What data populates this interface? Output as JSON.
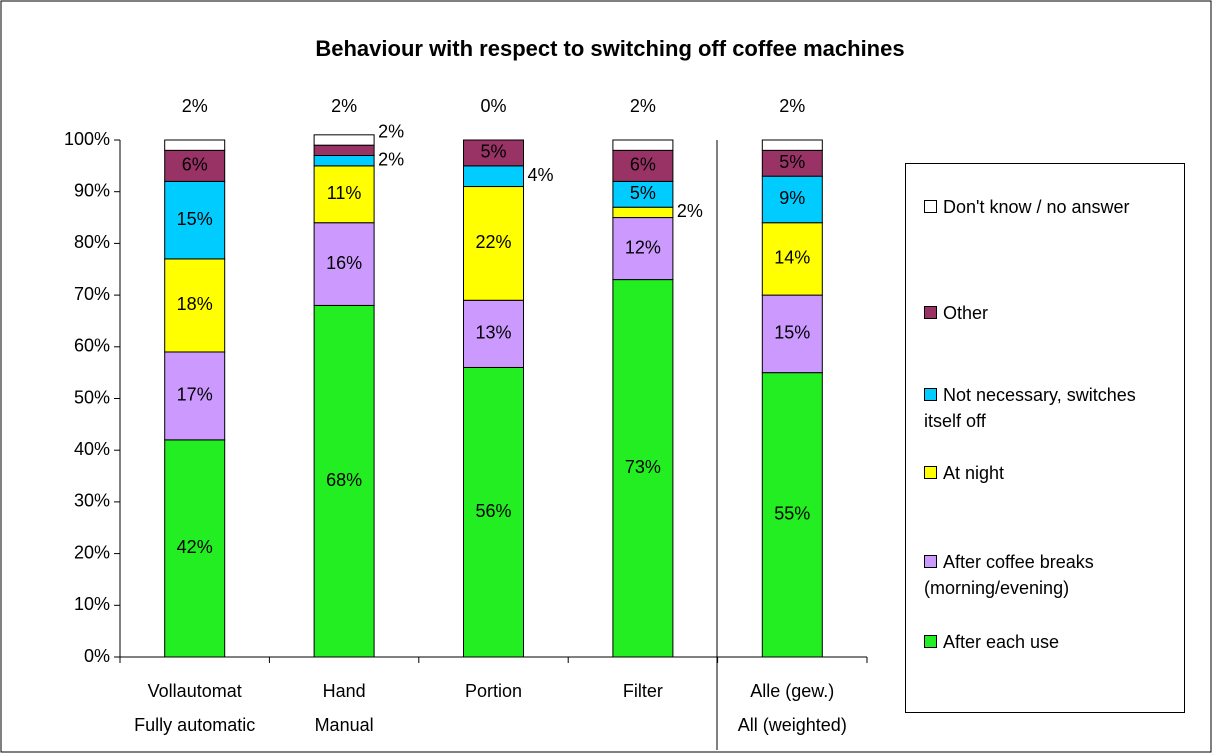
{
  "chart_data": {
    "type": "stacked_bar",
    "title": "Behaviour with respect to switching off coffee machines",
    "categories": [
      [
        "Vollautomat",
        "Fully automatic"
      ],
      [
        "Hand",
        "Manual"
      ],
      [
        "Portion"
      ],
      [
        "Filter"
      ],
      [
        "Alle (gew.)",
        "All (weighted)"
      ]
    ],
    "series": [
      {
        "name": "After each use",
        "color": "#22ee22",
        "values": [
          42,
          68,
          56,
          73,
          55
        ],
        "value_labels": [
          "42%",
          "68%",
          "56%",
          "73%",
          "55%"
        ]
      },
      {
        "name": "After coffee breaks (morning/evening)",
        "color": "#cc99ff",
        "values": [
          17,
          16,
          13,
          12,
          15
        ],
        "value_labels": [
          "17%",
          "16%",
          "13%",
          "12%",
          "15%"
        ]
      },
      {
        "name": "At night",
        "color": "#ffff00",
        "values": [
          18,
          11,
          22,
          2,
          14
        ],
        "value_labels": [
          "18%",
          "11%",
          "22%",
          "2%",
          "14%"
        ]
      },
      {
        "name": "Not necessary, switches itself off",
        "color": "#00ccff",
        "values": [
          15,
          2,
          4,
          5,
          9
        ],
        "value_labels": [
          "15%",
          "2%",
          "4%",
          "5%",
          "9%"
        ]
      },
      {
        "name": "Other",
        "color": "#993366",
        "values": [
          6,
          2,
          5,
          6,
          5
        ],
        "value_labels": [
          "6%",
          "2%",
          "5%",
          "6%",
          "5%"
        ]
      },
      {
        "name": "Don't know / no answer",
        "color": "#ffffff",
        "values": [
          2,
          2,
          0,
          2,
          2
        ],
        "value_labels": [
          "2%",
          "2%",
          "0%",
          "2%",
          "2%"
        ]
      }
    ],
    "ylim": [
      0,
      100
    ],
    "yticks": [
      {
        "value": 0,
        "label": "0%"
      },
      {
        "value": 10,
        "label": "10%"
      },
      {
        "value": 20,
        "label": "20%"
      },
      {
        "value": 30,
        "label": "30%"
      },
      {
        "value": 40,
        "label": "40%"
      },
      {
        "value": 50,
        "label": "50%"
      },
      {
        "value": 60,
        "label": "60%"
      },
      {
        "value": 70,
        "label": "70%"
      },
      {
        "value": 80,
        "label": "80%"
      },
      {
        "value": 90,
        "label": "90%"
      },
      {
        "value": 100,
        "label": "100%"
      }
    ],
    "legend": "right"
  }
}
